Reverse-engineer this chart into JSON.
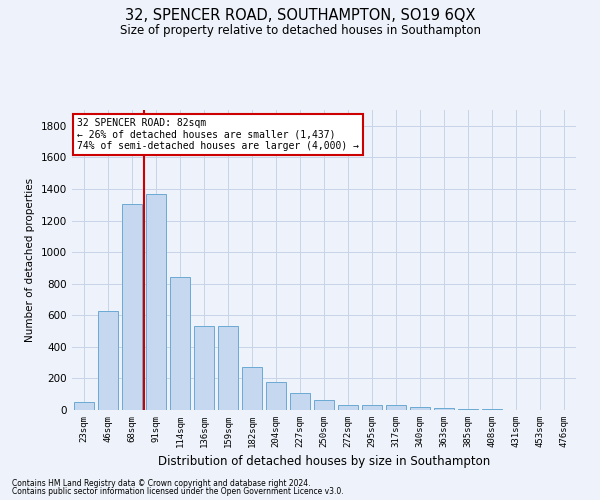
{
  "title1": "32, SPENCER ROAD, SOUTHAMPTON, SO19 6QX",
  "title2": "Size of property relative to detached houses in Southampton",
  "xlabel": "Distribution of detached houses by size in Southampton",
  "ylabel": "Number of detached properties",
  "categories": [
    "23sqm",
    "46sqm",
    "68sqm",
    "91sqm",
    "114sqm",
    "136sqm",
    "159sqm",
    "182sqm",
    "204sqm",
    "227sqm",
    "250sqm",
    "272sqm",
    "295sqm",
    "317sqm",
    "340sqm",
    "363sqm",
    "385sqm",
    "408sqm",
    "431sqm",
    "453sqm",
    "476sqm"
  ],
  "values": [
    50,
    630,
    1305,
    1370,
    840,
    530,
    530,
    275,
    180,
    105,
    65,
    30,
    30,
    30,
    20,
    15,
    5,
    5,
    2,
    2,
    2
  ],
  "bar_color": "#c5d8f0",
  "bar_edge_color": "#6aaad4",
  "grid_color": "#c8d4e8",
  "vline_color": "#cc0000",
  "vline_pos": 2.5,
  "annotation_text": "32 SPENCER ROAD: 82sqm\n← 26% of detached houses are smaller (1,437)\n74% of semi-detached houses are larger (4,000) →",
  "annotation_box_color": "#ffffff",
  "annotation_box_edge": "#cc0000",
  "ylim": [
    0,
    1900
  ],
  "yticks": [
    0,
    200,
    400,
    600,
    800,
    1000,
    1200,
    1400,
    1600,
    1800
  ],
  "footer1": "Contains HM Land Registry data © Crown copyright and database right 2024.",
  "footer2": "Contains public sector information licensed under the Open Government Licence v3.0.",
  "bg_color": "#eef2fa",
  "title1_fontsize": 10.5,
  "title2_fontsize": 8.5
}
